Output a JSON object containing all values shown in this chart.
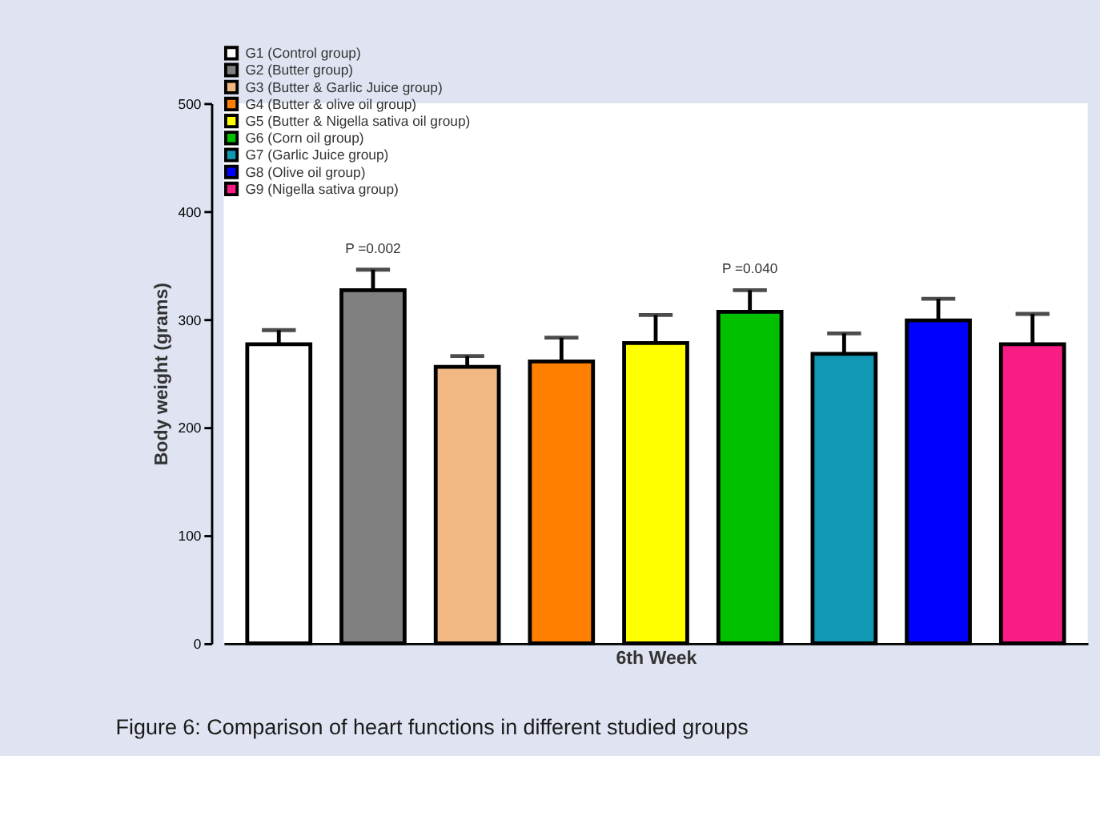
{
  "chart_data": {
    "type": "bar",
    "categories": [
      null,
      null,
      null,
      null,
      null,
      null,
      null,
      null,
      null
    ],
    "series": [
      {
        "name": "G1 (Control group)",
        "color": "#ffffff",
        "values": [
          277,
          null,
          null,
          null,
          null,
          null,
          null,
          null,
          null
        ],
        "errors": [
          [
            277,
            290
          ],
          null,
          null,
          null,
          null,
          null,
          null,
          null,
          null
        ]
      },
      {
        "name": "G2 (Butter group)",
        "color": "#808080",
        "values": [
          null,
          327,
          null,
          null,
          null,
          null,
          null,
          null,
          null
        ],
        "errors": [
          null,
          [
            327,
            346
          ],
          null,
          null,
          null,
          null,
          null,
          null,
          null
        ]
      },
      {
        "name": "G3 (Butter & Garlic Juice group)",
        "color": "#f2b884",
        "values": [
          null,
          null,
          256,
          null,
          null,
          null,
          null,
          null,
          null
        ],
        "errors": [
          null,
          null,
          [
            256,
            266
          ],
          null,
          null,
          null,
          null,
          null,
          null
        ]
      },
      {
        "name": "G4 (Butter & olive oil group)",
        "color": "#ff8000",
        "values": [
          null,
          null,
          null,
          261,
          null,
          null,
          null,
          null,
          null
        ],
        "errors": [
          null,
          null,
          null,
          [
            261,
            283
          ],
          null,
          null,
          null,
          null,
          null
        ]
      },
      {
        "name": "G5 (Butter & Nigella sativa oil group)",
        "color": "#ffff00",
        "values": [
          null,
          null,
          null,
          null,
          278,
          null,
          null,
          null,
          null
        ],
        "errors": [
          null,
          null,
          null,
          null,
          [
            278,
            304
          ],
          null,
          null,
          null,
          null
        ]
      },
      {
        "name": "G6 (Corn oil group)",
        "color": "#00c000",
        "values": [
          null,
          null,
          null,
          null,
          null,
          307,
          null,
          null,
          null
        ],
        "errors": [
          null,
          null,
          null,
          null,
          null,
          [
            307,
            327
          ],
          null,
          null,
          null
        ]
      },
      {
        "name": "G7 (Garlic Juice group)",
        "color": "#1098b4",
        "values": [
          null,
          null,
          null,
          null,
          null,
          null,
          268,
          null,
          null
        ],
        "errors": [
          null,
          null,
          null,
          null,
          null,
          null,
          [
            268,
            287
          ],
          null,
          null
        ]
      },
      {
        "name": "G8 (Olive oil group)",
        "color": "#0000ff",
        "values": [
          null,
          null,
          null,
          null,
          null,
          null,
          null,
          299,
          null
        ],
        "errors": [
          null,
          null,
          null,
          null,
          null,
          null,
          null,
          [
            299,
            319
          ],
          null
        ]
      },
      {
        "name": "G9 (Nigella sativa group)",
        "color": "#f81c84",
        "values": [
          null,
          null,
          null,
          null,
          null,
          null,
          null,
          null,
          277
        ],
        "errors": [
          null,
          null,
          null,
          null,
          null,
          null,
          null,
          null,
          [
            277,
            305
          ]
        ]
      }
    ],
    "xlabel": "6th Week",
    "ylabel": "Body weight (grams)",
    "ylim": [
      0,
      500
    ],
    "yticks": [
      0,
      100,
      200,
      300,
      400,
      500
    ],
    "grid": false,
    "legend": "top left",
    "annotations": [
      {
        "text": "P =0.002",
        "y": 346
      },
      {
        "text": "P =0.040",
        "y": 327
      },
      "Figure 6: Comparison of heart functions in different studied groups"
    ]
  }
}
